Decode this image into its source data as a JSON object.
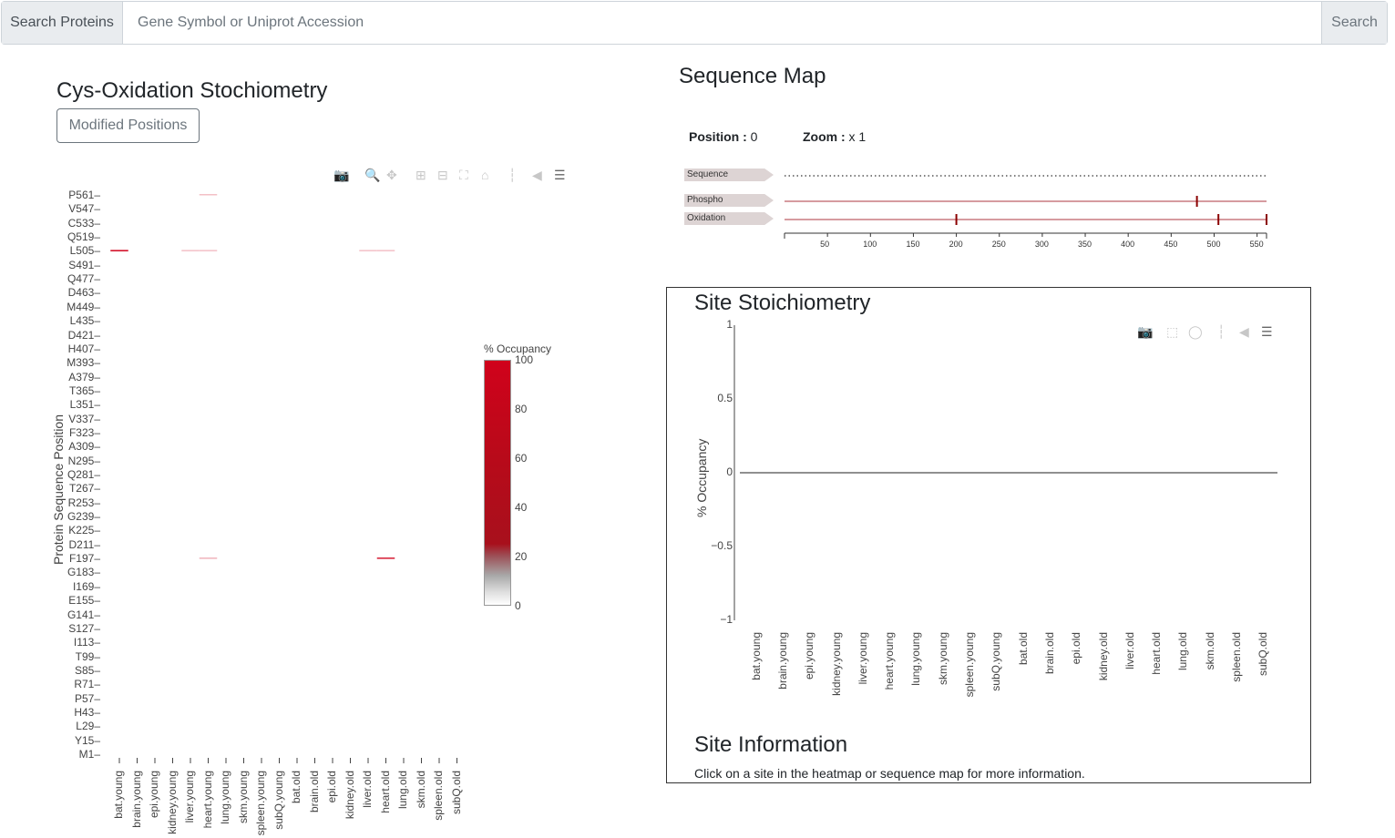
{
  "search": {
    "prefix": "Search Proteins",
    "placeholder": "Gene Symbol or Uniprot Accession",
    "value": "",
    "button": "Search"
  },
  "heatmap": {
    "title": "Cys-Oxidation Stochiometry",
    "modified_button": "Modified Positions",
    "y_axis_title": "Protein Sequence Position",
    "positions": [
      "P561",
      "V547",
      "C533",
      "Q519",
      "L505",
      "S491",
      "Q477",
      "D463",
      "M449",
      "L435",
      "D421",
      "H407",
      "M393",
      "A379",
      "T365",
      "L351",
      "V337",
      "F323",
      "A309",
      "N295",
      "Q281",
      "T267",
      "R253",
      "G239",
      "K225",
      "D211",
      "F197",
      "G183",
      "I169",
      "E155",
      "G141",
      "S127",
      "I113",
      "T99",
      "S85",
      "R71",
      "P57",
      "H43",
      "L29",
      "Y15",
      "M1"
    ],
    "conditions": [
      "bat.young",
      "brain.young",
      "epi.young",
      "kidney.young",
      "liver.young",
      "heart.young",
      "lung.young",
      "skm.young",
      "spleen.young",
      "subQ.young",
      "bat.old",
      "brain.old",
      "epi.old",
      "kidney.old",
      "liver.old",
      "heart.old",
      "lung.old",
      "skm.old",
      "spleen.old",
      "subQ.old"
    ],
    "marks": [
      {
        "position": "L505",
        "condition": "bat.young",
        "occupancy": 100
      },
      {
        "position": "P561",
        "condition": "heart.young",
        "occupancy": 8
      },
      {
        "position": "L505",
        "condition": "liver.young",
        "occupancy": 5
      },
      {
        "position": "L505",
        "condition": "heart.young",
        "occupancy": 5
      },
      {
        "position": "L505",
        "condition": "liver.old",
        "occupancy": 5
      },
      {
        "position": "L505",
        "condition": "heart.old",
        "occupancy": 5
      },
      {
        "position": "F197",
        "condition": "heart.young",
        "occupancy": 30
      },
      {
        "position": "F197",
        "condition": "heart.old",
        "occupancy": 90
      }
    ],
    "colorbar": {
      "title": "% Occupancy",
      "ticks": [
        "100",
        "80",
        "60",
        "40",
        "20",
        "0"
      ],
      "color_high": "#d0021b",
      "color_low": "#ffffff"
    },
    "icons": [
      "camera-icon",
      "zoom-icon",
      "pan-icon",
      "zoom-in-icon",
      "zoom-out-icon",
      "autoscale-icon",
      "reset-icon",
      "spike-icon",
      "hover-closest-icon",
      "hover-compare-icon"
    ]
  },
  "sequence_map": {
    "title": "Sequence Map",
    "position_label": "Position :",
    "position_value": "0",
    "zoom_label": "Zoom :",
    "zoom_value": "x 1",
    "tracks": [
      "Sequence",
      "Phospho",
      "Oxidation"
    ],
    "phospho_sites": [
      480
    ],
    "oxidation_sites": [
      200,
      505,
      561
    ],
    "axis_ticks": [
      "50",
      "100",
      "150",
      "200",
      "250",
      "300",
      "350",
      "400",
      "450",
      "500",
      "550"
    ],
    "max_position": 561,
    "line_color": "#c97a80",
    "mark_color": "#8b0000"
  },
  "site_stoichiometry": {
    "title": "Site Stoichiometry",
    "chart_data": {
      "type": "bar",
      "categories": [
        "bat.young",
        "brain.young",
        "epi.young",
        "kidney.young",
        "liver.young",
        "heart.young",
        "lung.young",
        "skm.young",
        "spleen.young",
        "subQ.young",
        "bat.old",
        "brain.old",
        "epi.old",
        "kidney.old",
        "liver.old",
        "heart.old",
        "lung.old",
        "skm.old",
        "spleen.old",
        "subQ.old"
      ],
      "values": [
        0,
        0,
        0,
        0,
        0,
        0,
        0,
        0,
        0,
        0,
        0,
        0,
        0,
        0,
        0,
        0,
        0,
        0,
        0,
        0
      ],
      "ylabel": "% Occupancy",
      "ylim": [
        -1,
        1
      ],
      "y_ticks": [
        "1",
        "0.5",
        "0",
        "−0.5",
        "−1"
      ]
    },
    "icons": [
      "camera-icon",
      "box-select-icon",
      "lasso-icon",
      "spike-icon",
      "hover-closest-icon",
      "hover-compare-icon"
    ]
  },
  "site_info": {
    "title": "Site Information",
    "text": "Click on a site in the heatmap or sequence map for more information."
  }
}
